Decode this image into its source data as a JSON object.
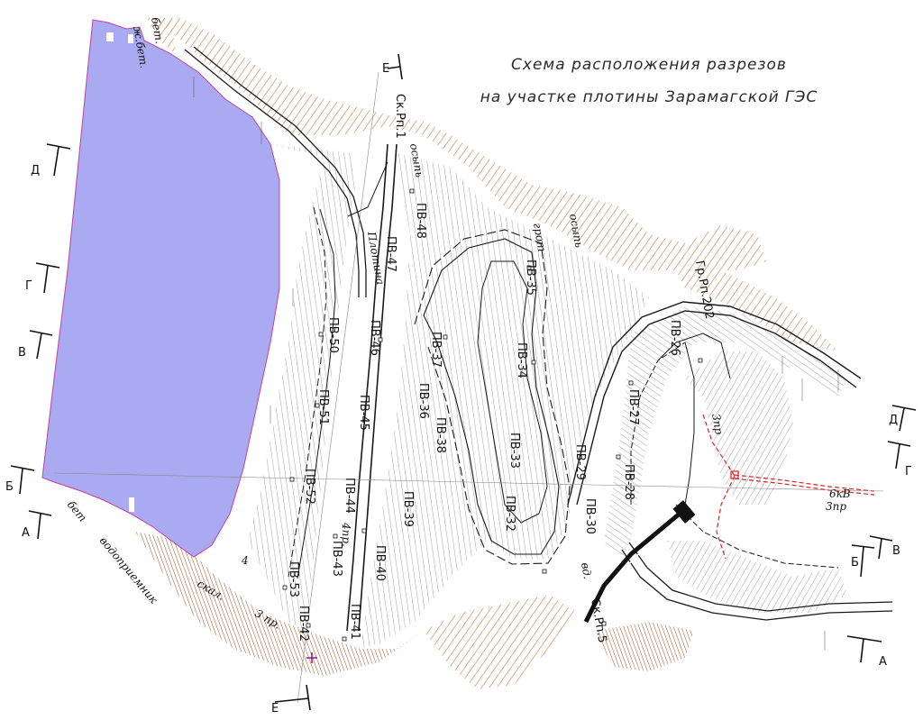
{
  "title": {
    "line1": "Схема расположения разрезов",
    "line2": "на участке плотины Зарамагской ГЭС"
  },
  "sections": {
    "D": "Д",
    "G": "Г",
    "V": "В",
    "B": "Б",
    "A": "А",
    "E": "Е"
  },
  "wells": {
    "pv48": "ПВ-48",
    "pv47": "ПВ-47",
    "pv46": "ПВ-46",
    "pv45": "ПВ-45",
    "pv44": "ПВ-44",
    "pv43": "ПВ-43",
    "pv42": "ПВ-42",
    "pv41": "ПВ-41",
    "pv40": "ПВ-40",
    "pv39": "ПВ-39",
    "pv38": "ПВ-38",
    "pv37": "ПВ-37",
    "pv36": "ПВ-36",
    "pv35": "ПВ-35",
    "pv34": "ПВ-34",
    "pv33": "ПВ-33",
    "pv32": "ПВ-32",
    "pv30": "ПВ-30",
    "pv29": "ПВ-29",
    "pv28": "ПВ-28",
    "pv27": "ПВ-27",
    "pv26": "ПВ-26",
    "pv50": "ПВ-50",
    "pv51": "ПВ-51",
    "pv52": "ПВ-52",
    "pv53": "ПВ-53"
  },
  "labels": {
    "bet_top": "бет.",
    "zhbet": "ж.бет.",
    "plotina": "Плотина",
    "osyp1": "осыпь",
    "osyp2": "осыпь",
    "grot": "грот",
    "sk_rp1": "Ск.Рп.1",
    "gr_rp202": "Гр.Рп.202",
    "sk_rp5": "Ск.Рп.5",
    "vodopriemnik": "водоприемник",
    "bet_bottom": "бет",
    "skal": "скал.",
    "tri_pr": "3 пр.",
    "chetyre_pr": "4пр.",
    "six_kv": "6кВ",
    "three_pr": "3пр",
    "three_pr_b": "3пр",
    "vd": "вд.",
    "num_4": "4"
  },
  "colors": {
    "reservoir": "#aaaaf2",
    "reservoir_edge": "#c040a0",
    "rock_hatch": "#c07a3a",
    "slope_hatch": "#444444",
    "road": "#1a1a1a",
    "power_line": "#dd2222",
    "marker": "#8a1a8a"
  }
}
